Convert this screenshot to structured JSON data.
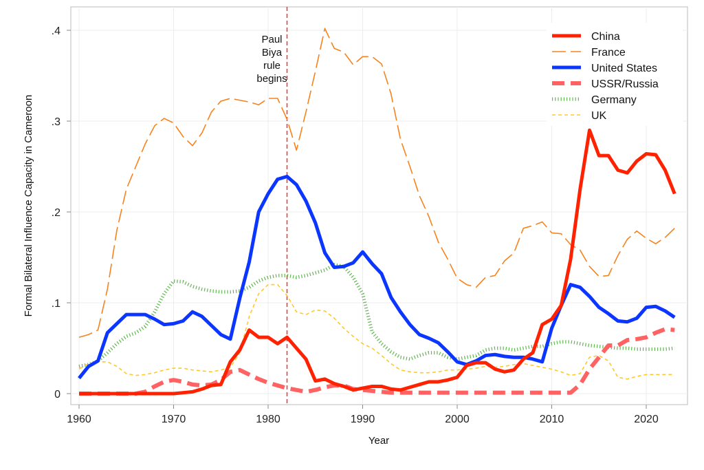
{
  "chart_data": {
    "type": "line",
    "title": "",
    "xlabel": "Year",
    "ylabel": "Formal Bilateral Influence Capacity in Cameroon",
    "xlim": [
      1959,
      2024
    ],
    "ylim": [
      0,
      0.42
    ],
    "grid": true,
    "legend_position": "top-right",
    "x_ticks": [
      1960,
      1970,
      1980,
      1990,
      2000,
      2010,
      2020
    ],
    "x_tick_labels": [
      "1960",
      "1970",
      "1980",
      "1990",
      "2000",
      "2010",
      "2020"
    ],
    "y_ticks": [
      0,
      0.1,
      0.2,
      0.3,
      0.4
    ],
    "y_tick_labels": [
      "0",
      ".1",
      ".2",
      ".3",
      ".4"
    ],
    "annotation": {
      "x": 1982,
      "lines": [
        "Paul",
        "Biya",
        "rule",
        "begins"
      ],
      "color": "#ff2a2a"
    },
    "x_start": 1960,
    "series": [
      {
        "name": "China",
        "color": "#ff2200",
        "values": [
          0,
          0,
          0,
          0,
          0,
          0,
          0,
          0,
          0,
          0,
          0,
          0.001,
          0.002,
          0.005,
          0.009,
          0.01,
          0.035,
          0.048,
          0.07,
          0.062,
          0.062,
          0.055,
          0.062,
          0.05,
          0.038,
          0.014,
          0.016,
          0.011,
          0.008,
          0.004,
          0.006,
          0.008,
          0.008,
          0.005,
          0.004,
          0.007,
          0.01,
          0.013,
          0.013,
          0.015,
          0.018,
          0.031,
          0.034,
          0.034,
          0.027,
          0.024,
          0.026,
          0.038,
          0.045,
          0.076,
          0.082,
          0.097,
          0.148,
          0.225,
          0.29,
          0.262,
          0.262,
          0.246,
          0.243,
          0.256,
          0.264,
          0.263,
          0.246,
          0.22
        ]
      },
      {
        "name": "France",
        "color": "#f7821b",
        "values": [
          0.062,
          0.065,
          0.07,
          0.115,
          0.18,
          0.225,
          0.25,
          0.275,
          0.295,
          0.303,
          0.298,
          0.283,
          0.273,
          0.287,
          0.31,
          0.322,
          0.325,
          0.323,
          0.321,
          0.318,
          0.325,
          0.325,
          0.302,
          0.268,
          0.31,
          0.355,
          0.402,
          0.38,
          0.376,
          0.362,
          0.371,
          0.371,
          0.363,
          0.33,
          0.28,
          0.25,
          0.218,
          0.195,
          0.167,
          0.148,
          0.127,
          0.12,
          0.117,
          0.128,
          0.13,
          0.146,
          0.155,
          0.182,
          0.185,
          0.189,
          0.177,
          0.176,
          0.164,
          0.158,
          0.14,
          0.129,
          0.13,
          0.152,
          0.17,
          0.179,
          0.171,
          0.165,
          0.172,
          0.182
        ]
      },
      {
        "name": "United States",
        "color": "#0a36ff",
        "values": [
          0.017,
          0.03,
          0.036,
          0.067,
          0.077,
          0.087,
          0.087,
          0.087,
          0.082,
          0.076,
          0.077,
          0.08,
          0.09,
          0.085,
          0.075,
          0.065,
          0.06,
          0.105,
          0.145,
          0.2,
          0.22,
          0.236,
          0.239,
          0.23,
          0.212,
          0.188,
          0.155,
          0.139,
          0.14,
          0.144,
          0.156,
          0.143,
          0.132,
          0.106,
          0.09,
          0.076,
          0.065,
          0.061,
          0.056,
          0.046,
          0.035,
          0.032,
          0.036,
          0.042,
          0.043,
          0.041,
          0.04,
          0.04,
          0.038,
          0.035,
          0.072,
          0.097,
          0.12,
          0.117,
          0.107,
          0.095,
          0.088,
          0.08,
          0.079,
          0.083,
          0.095,
          0.096,
          0.091,
          0.084
        ]
      },
      {
        "name": "USSR/Russia",
        "color": "#ff6262",
        "values": [
          0,
          0,
          0,
          0,
          0,
          0,
          0,
          0.002,
          0.008,
          0.013,
          0.015,
          0.013,
          0.01,
          0.009,
          0.01,
          0.015,
          0.024,
          0.026,
          0.021,
          0.016,
          0.012,
          0.009,
          0.006,
          0.004,
          0.002,
          0.004,
          0.007,
          0.009,
          0.009,
          0.005,
          0.004,
          0.003,
          0.002,
          0.001,
          0.001,
          0.001,
          0.001,
          0.001,
          0.001,
          0.001,
          0.001,
          0.001,
          0.001,
          0.001,
          0.001,
          0.001,
          0.001,
          0.001,
          0.001,
          0.001,
          0.001,
          0.001,
          0.001,
          0.01,
          0.027,
          0.04,
          0.053,
          0.053,
          0.059,
          0.06,
          0.062,
          0.067,
          0.071,
          0.07
        ]
      },
      {
        "name": "Germany",
        "color": "#5fb84e",
        "values": [
          0.03,
          0.032,
          0.036,
          0.045,
          0.055,
          0.063,
          0.067,
          0.074,
          0.09,
          0.11,
          0.124,
          0.123,
          0.118,
          0.115,
          0.113,
          0.112,
          0.112,
          0.113,
          0.117,
          0.124,
          0.128,
          0.13,
          0.13,
          0.128,
          0.13,
          0.133,
          0.136,
          0.142,
          0.14,
          0.128,
          0.11,
          0.068,
          0.055,
          0.046,
          0.04,
          0.038,
          0.042,
          0.045,
          0.045,
          0.04,
          0.038,
          0.04,
          0.042,
          0.048,
          0.05,
          0.05,
          0.048,
          0.05,
          0.052,
          0.052,
          0.055,
          0.057,
          0.057,
          0.055,
          0.053,
          0.052,
          0.051,
          0.05,
          0.05,
          0.049,
          0.049,
          0.049,
          0.049,
          0.05
        ]
      },
      {
        "name": "UK",
        "color": "#ffc82a",
        "values": [
          0.027,
          0.033,
          0.035,
          0.035,
          0.03,
          0.022,
          0.02,
          0.021,
          0.023,
          0.026,
          0.028,
          0.028,
          0.026,
          0.025,
          0.024,
          0.026,
          0.029,
          0.045,
          0.085,
          0.11,
          0.12,
          0.12,
          0.108,
          0.09,
          0.087,
          0.092,
          0.091,
          0.083,
          0.072,
          0.063,
          0.055,
          0.05,
          0.042,
          0.033,
          0.026,
          0.024,
          0.023,
          0.023,
          0.024,
          0.026,
          0.026,
          0.027,
          0.028,
          0.03,
          0.029,
          0.03,
          0.032,
          0.033,
          0.031,
          0.029,
          0.027,
          0.024,
          0.02,
          0.022,
          0.04,
          0.042,
          0.036,
          0.018,
          0.016,
          0.019,
          0.021,
          0.021,
          0.021,
          0.021
        ]
      }
    ]
  }
}
